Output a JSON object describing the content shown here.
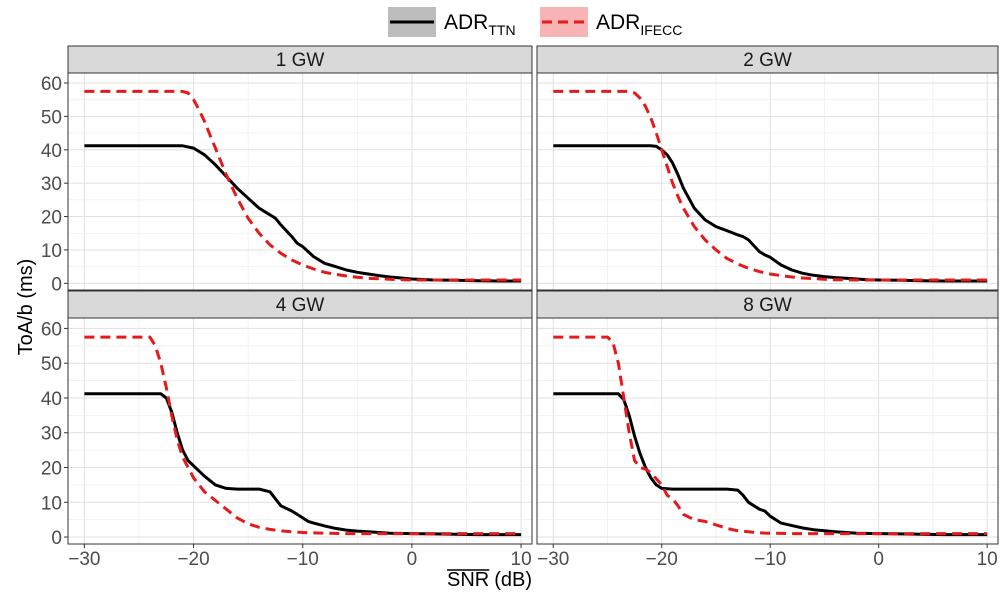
{
  "chart_data": {
    "type": "line",
    "xlabel": "SNR",
    "xlabel_unit": "(dB)",
    "ylabel": "ToA/b (ms)",
    "xlim": [
      -31.5,
      11
    ],
    "ylim": [
      -2,
      63
    ],
    "xticks": [
      -30,
      -20,
      -10,
      0,
      10
    ],
    "xtick_labels": [
      "−30",
      "−20",
      "−10",
      "0",
      "10"
    ],
    "yticks": [
      0,
      10,
      20,
      30,
      40,
      50,
      60
    ],
    "ytick_labels": [
      "0",
      "10",
      "20",
      "30",
      "40",
      "50",
      "60"
    ],
    "grid": true,
    "legend_position": "top-center",
    "legend": [
      {
        "key": "ttn",
        "base": "ADR",
        "sub": "TTN",
        "color": "#000000",
        "dash": "solid",
        "fill": "#bdbdbd"
      },
      {
        "key": "ifecc",
        "base": "ADR",
        "sub": "IFECC",
        "color": "#e41a1c",
        "dash": "dashed",
        "fill": "#f8b4b4"
      }
    ],
    "panels": [
      {
        "title": "1 GW",
        "series": [
          {
            "key": "ttn",
            "x": [
              -30,
              -21,
              -20,
              -19,
              -18,
              -17,
              -16,
              -15,
              -14,
              -13,
              -12.5,
              -12,
              -11,
              -10.5,
              -10,
              -9,
              -8,
              -7,
              -6,
              -5,
              -4,
              -3,
              -2,
              -1,
              0,
              2,
              4,
              6,
              8,
              10
            ],
            "y": [
              41.2,
              41.2,
              40.5,
              38.5,
              35.5,
              32,
              28.5,
              25.5,
              22.5,
              20.5,
              19.5,
              17.5,
              14,
              12,
              11,
              8,
              6,
              5,
              4,
              3.3,
              2.8,
              2.3,
              1.9,
              1.6,
              1.3,
              1.0,
              0.9,
              0.8,
              0.7,
              0.7
            ]
          },
          {
            "key": "ifecc",
            "x": [
              -30,
              -21,
              -20.5,
              -20,
              -19.5,
              -19,
              -18.5,
              -18,
              -17,
              -16,
              -15,
              -14,
              -13,
              -12,
              -11,
              -10,
              -9,
              -8,
              -7,
              -6,
              -5,
              -4,
              -2,
              0,
              2,
              4,
              6,
              8,
              10
            ],
            "y": [
              57.5,
              57.5,
              57,
              55,
              52,
              48.5,
              44.5,
              40.5,
              32.5,
              25.5,
              19.5,
              15,
              11.5,
              9,
              7,
              5.5,
              4.3,
              3.3,
              2.7,
              2.2,
              1.8,
              1.5,
              1.2,
              1.0,
              1.0,
              1.0,
              1.0,
              1.0,
              1.0
            ]
          }
        ]
      },
      {
        "title": "2 GW",
        "series": [
          {
            "key": "ttn",
            "x": [
              -30,
              -21,
              -20.5,
              -20,
              -19.5,
              -19,
              -18.5,
              -18,
              -17,
              -16,
              -15,
              -14,
              -13,
              -12.5,
              -12,
              -11,
              -10.5,
              -10,
              -9,
              -8,
              -7,
              -6,
              -5,
              -4,
              -3,
              -2,
              -1,
              0,
              2,
              4,
              6,
              8,
              10
            ],
            "y": [
              41.2,
              41.2,
              41,
              40,
              38.5,
              36,
              32.5,
              28.5,
              22.5,
              19,
              17,
              15.8,
              14.5,
              14,
              13,
              9.5,
              8.5,
              7.8,
              5.5,
              4,
              3,
              2.4,
              2,
              1.7,
              1.5,
              1.3,
              1.1,
              1.0,
              0.9,
              0.8,
              0.7,
              0.7,
              0.7
            ]
          },
          {
            "key": "ifecc",
            "x": [
              -30,
              -23,
              -22.5,
              -22,
              -21.5,
              -21,
              -20.5,
              -20,
              -19.5,
              -19,
              -18.5,
              -18,
              -17,
              -16,
              -15,
              -14,
              -13,
              -12,
              -11,
              -10,
              -9,
              -8,
              -7,
              -6,
              -5,
              -4,
              -2,
              0,
              2,
              4,
              6,
              8,
              10
            ],
            "y": [
              57.5,
              57.5,
              57,
              55.5,
              53,
              49.5,
              45,
              40,
              35,
              30,
              26,
              22.5,
              17,
              13,
              10,
              7.5,
              5.8,
              4.5,
              3.5,
              2.8,
              2.3,
              1.9,
              1.6,
              1.4,
              1.2,
              1.1,
              1.0,
              1.0,
              1.0,
              1.0,
              1.0,
              1.0,
              1.0
            ]
          }
        ]
      },
      {
        "title": "4 GW",
        "series": [
          {
            "key": "ttn",
            "x": [
              -30,
              -23,
              -22.5,
              -22,
              -21.5,
              -21,
              -20.5,
              -20,
              -19,
              -18,
              -17,
              -16,
              -15,
              -14,
              -13,
              -12.5,
              -12,
              -11,
              -10.5,
              -10,
              -9.5,
              -9,
              -8,
              -7,
              -6,
              -5,
              -4,
              -3,
              -2,
              0,
              2,
              4,
              6,
              8,
              10
            ],
            "y": [
              41.2,
              41.2,
              40,
              36,
              30,
              25,
              22,
              20.5,
              17.5,
              15,
              14,
              13.8,
              13.8,
              13.8,
              13,
              11,
              9,
              7.5,
              6.5,
              5.5,
              4.5,
              4,
              3.2,
              2.5,
              2,
              1.7,
              1.5,
              1.3,
              1.1,
              1.0,
              0.9,
              0.8,
              0.7,
              0.7,
              0.7
            ]
          },
          {
            "key": "ifecc",
            "x": [
              -30,
              -24,
              -23.5,
              -23,
              -22.5,
              -22,
              -21.5,
              -21,
              -20.5,
              -20,
              -19,
              -18,
              -17,
              -16,
              -15,
              -14,
              -13,
              -12,
              -11,
              -10,
              -9,
              -8,
              -6,
              -4,
              -2,
              0,
              2,
              4,
              6,
              8,
              10
            ],
            "y": [
              57.5,
              57.5,
              55,
              50,
              43,
              35,
              28,
              23,
              20,
              17,
              13,
              10.5,
              8,
              5.5,
              3.8,
              2.8,
              2.2,
              1.8,
              1.5,
              1.3,
              1.2,
              1.1,
              1.0,
              1.0,
              1.0,
              1.0,
              1.0,
              1.0,
              1.0,
              1.0,
              1.0
            ]
          }
        ]
      },
      {
        "title": "8 GW",
        "series": [
          {
            "key": "ttn",
            "x": [
              -30,
              -24,
              -23.5,
              -23,
              -22.5,
              -22,
              -21.5,
              -21,
              -20.5,
              -20,
              -19,
              -18,
              -17,
              -16,
              -15,
              -14,
              -13,
              -12.5,
              -12,
              -11,
              -10.5,
              -10,
              -9,
              -8,
              -7,
              -6,
              -5,
              -4,
              -3,
              -2,
              0,
              2,
              4,
              6,
              8,
              10
            ],
            "y": [
              41.2,
              41.2,
              39.5,
              35,
              29,
              24,
              20,
              17,
              15,
              14,
              13.8,
              13.8,
              13.8,
              13.8,
              13.8,
              13.8,
              13.5,
              12,
              10,
              8,
              7.5,
              6,
              4,
              3.3,
              2.6,
              2.1,
              1.8,
              1.5,
              1.3,
              1.1,
              1.0,
              0.9,
              0.8,
              0.7,
              0.7,
              0.7
            ]
          },
          {
            "key": "ifecc",
            "x": [
              -30,
              -25,
              -24.5,
              -24,
              -23.5,
              -23,
              -22.5,
              -22,
              -21.5,
              -21,
              -20,
              -19.5,
              -19,
              -18.5,
              -18,
              -17,
              -16,
              -15,
              -14.5,
              -14,
              -13,
              -12,
              -11,
              -10,
              -8,
              -6,
              -4,
              -2,
              0,
              2,
              4,
              6,
              8,
              10
            ],
            "y": [
              57.5,
              57.5,
              56,
              50,
              40,
              30,
              22,
              20,
              19.5,
              18.5,
              15,
              12,
              11,
              9,
              6.5,
              5,
              4.5,
              3.5,
              3,
              2.5,
              1.8,
              1.5,
              1.2,
              1.1,
              1.0,
              1.0,
              1.0,
              1.0,
              1.0,
              1.0,
              1.0,
              1.0,
              1.0,
              1.0
            ]
          }
        ]
      }
    ]
  }
}
